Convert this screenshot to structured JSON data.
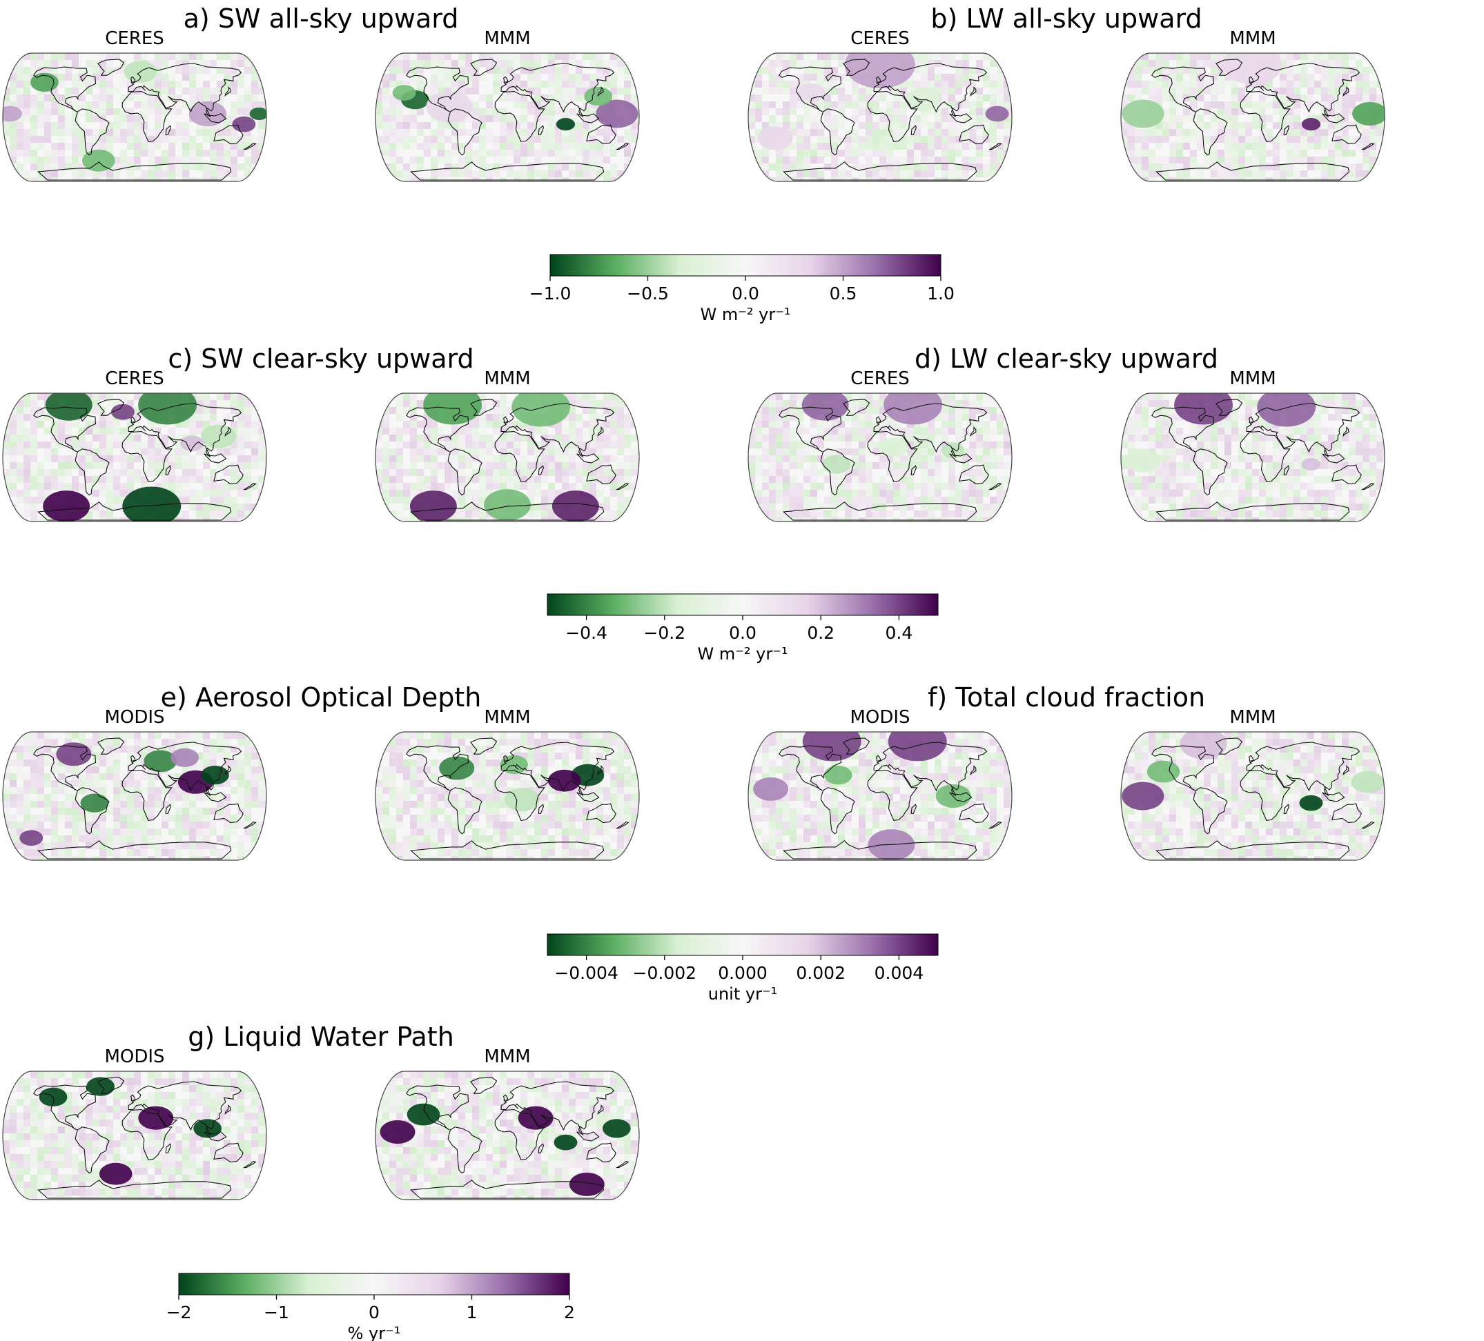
{
  "figure": {
    "panels": [
      {
        "id": "a",
        "title": "a) SW all-sky upward",
        "maps": [
          {
            "label": "CERES",
            "blobs": [
              {
                "lon": -140,
                "lat": 50,
                "r": 12,
                "v": -0.7
              },
              {
                "lon": 10,
                "lat": 65,
                "r": 14,
                "v": -0.4
              },
              {
                "lon": 150,
                "lat": -10,
                "r": 10,
                "v": 0.8
              },
              {
                "lon": -60,
                "lat": -62,
                "r": 14,
                "v": -0.6
              },
              {
                "lon": 100,
                "lat": 5,
                "r": 16,
                "v": 0.5
              },
              {
                "lon": -170,
                "lat": 5,
                "r": 10,
                "v": 0.5
              },
              {
                "lon": 170,
                "lat": 5,
                "r": 8,
                "v": -0.9
              }
            ]
          },
          {
            "label": "MMM",
            "blobs": [
              {
                "lon": -130,
                "lat": 25,
                "r": 12,
                "v": -0.9
              },
              {
                "lon": -150,
                "lat": 35,
                "r": 10,
                "v": -0.6
              },
              {
                "lon": 80,
                "lat": -10,
                "r": 8,
                "v": -1.0
              },
              {
                "lon": 150,
                "lat": 5,
                "r": 18,
                "v": 0.7
              },
              {
                "lon": 130,
                "lat": 30,
                "r": 12,
                "v": -0.6
              },
              {
                "lon": -80,
                "lat": 15,
                "r": 20,
                "v": 0.3
              }
            ]
          }
        ]
      },
      {
        "id": "b",
        "title": "b) LW all-sky upward",
        "maps": [
          {
            "label": "CERES",
            "blobs": [
              {
                "lon": 0,
                "lat": 75,
                "r": 30,
                "v": 0.5
              },
              {
                "lon": 160,
                "lat": 5,
                "r": 10,
                "v": 0.7
              },
              {
                "lon": -100,
                "lat": 35,
                "r": 12,
                "v": 0.3
              },
              {
                "lon": 60,
                "lat": 25,
                "r": 15,
                "v": -0.3
              },
              {
                "lon": -150,
                "lat": -30,
                "r": 15,
                "v": 0.3
              }
            ]
          },
          {
            "label": "MMM",
            "blobs": [
              {
                "lon": 0,
                "lat": 75,
                "r": 25,
                "v": 0.3
              },
              {
                "lon": 80,
                "lat": -10,
                "r": 8,
                "v": 0.9
              },
              {
                "lon": 160,
                "lat": 5,
                "r": 15,
                "v": -0.7
              },
              {
                "lon": -150,
                "lat": 5,
                "r": 18,
                "v": -0.5
              }
            ]
          }
        ]
      },
      {
        "id": "c",
        "title": "c) SW clear-sky upward",
        "maps": [
          {
            "label": "CERES",
            "blobs": [
              {
                "lon": -120,
                "lat": 75,
                "r": 20,
                "v": -0.45
              },
              {
                "lon": 60,
                "lat": 75,
                "r": 25,
                "v": -0.4
              },
              {
                "lon": -20,
                "lat": 65,
                "r": 10,
                "v": 0.4
              },
              {
                "lon": -120,
                "lat": -70,
                "r": 20,
                "v": 0.5
              },
              {
                "lon": 30,
                "lat": -70,
                "r": 25,
                "v": -0.5
              },
              {
                "lon": 120,
                "lat": 30,
                "r": 15,
                "v": -0.2
              },
              {
                "lon": 80,
                "lat": 20,
                "r": 10,
                "v": 0.2
              }
            ]
          },
          {
            "label": "MMM",
            "blobs": [
              {
                "lon": -100,
                "lat": 75,
                "r": 25,
                "v": -0.35
              },
              {
                "lon": 60,
                "lat": 72,
                "r": 25,
                "v": -0.3
              },
              {
                "lon": -130,
                "lat": -70,
                "r": 20,
                "v": 0.45
              },
              {
                "lon": 120,
                "lat": -70,
                "r": 20,
                "v": 0.45
              },
              {
                "lon": 0,
                "lat": -68,
                "r": 20,
                "v": -0.3
              }
            ]
          }
        ]
      },
      {
        "id": "d",
        "title": "d) LW clear-sky upward",
        "maps": [
          {
            "label": "CERES",
            "blobs": [
              {
                "lon": -100,
                "lat": 75,
                "r": 20,
                "v": 0.35
              },
              {
                "lon": 60,
                "lat": 75,
                "r": 25,
                "v": 0.3
              },
              {
                "lon": 20,
                "lat": 15,
                "r": 12,
                "v": -0.15
              },
              {
                "lon": -60,
                "lat": -10,
                "r": 12,
                "v": -0.2
              },
              {
                "lon": 100,
                "lat": 10,
                "r": 10,
                "v": -0.2
              }
            ]
          },
          {
            "label": "MMM",
            "blobs": [
              {
                "lon": -90,
                "lat": 75,
                "r": 25,
                "v": 0.4
              },
              {
                "lon": 60,
                "lat": 72,
                "r": 25,
                "v": 0.35
              },
              {
                "lon": 80,
                "lat": -10,
                "r": 8,
                "v": 0.2
              },
              {
                "lon": -150,
                "lat": -5,
                "r": 15,
                "v": -0.15
              }
            ]
          }
        ]
      },
      {
        "id": "e",
        "title": "e) Aerosol Optical Depth",
        "maps": [
          {
            "label": "MODIS",
            "blobs": [
              {
                "lon": 85,
                "lat": 20,
                "r": 15,
                "v": 0.005
              },
              {
                "lon": 115,
                "lat": 30,
                "r": 12,
                "v": -0.005
              },
              {
                "lon": -100,
                "lat": 60,
                "r": 15,
                "v": 0.004
              },
              {
                "lon": 40,
                "lat": 50,
                "r": 14,
                "v": -0.004
              },
              {
                "lon": -55,
                "lat": -10,
                "r": 12,
                "v": -0.004
              },
              {
                "lon": 80,
                "lat": 55,
                "r": 12,
                "v": 0.003
              },
              {
                "lon": -170,
                "lat": -60,
                "r": 10,
                "v": 0.004
              }
            ]
          },
          {
            "label": "MMM",
            "blobs": [
              {
                "lon": -75,
                "lat": 40,
                "r": 15,
                "v": -0.004
              },
              {
                "lon": 115,
                "lat": 30,
                "r": 14,
                "v": -0.005
              },
              {
                "lon": 80,
                "lat": 22,
                "r": 14,
                "v": 0.005
              },
              {
                "lon": 10,
                "lat": 45,
                "r": 12,
                "v": -0.003
              },
              {
                "lon": 20,
                "lat": -5,
                "r": 15,
                "v": -0.002
              }
            ]
          }
        ]
      },
      {
        "id": "f",
        "title": "f) Total cloud fraction",
        "maps": [
          {
            "label": "MODIS",
            "blobs": [
              {
                "lon": -90,
                "lat": 78,
                "r": 25,
                "v": 0.004
              },
              {
                "lon": 70,
                "lat": 78,
                "r": 25,
                "v": 0.004
              },
              {
                "lon": -150,
                "lat": 10,
                "r": 15,
                "v": 0.003
              },
              {
                "lon": 20,
                "lat": -70,
                "r": 20,
                "v": 0.003
              },
              {
                "lon": -60,
                "lat": 30,
                "r": 12,
                "v": -0.003
              },
              {
                "lon": 100,
                "lat": 0,
                "r": 15,
                "v": -0.003
              }
            ]
          },
          {
            "label": "MMM",
            "blobs": [
              {
                "lon": -150,
                "lat": 0,
                "r": 18,
                "v": 0.004
              },
              {
                "lon": 80,
                "lat": -10,
                "r": 10,
                "v": -0.005
              },
              {
                "lon": -130,
                "lat": 35,
                "r": 14,
                "v": -0.003
              },
              {
                "lon": 160,
                "lat": 20,
                "r": 14,
                "v": -0.002
              },
              {
                "lon": -90,
                "lat": 75,
                "r": 20,
                "v": 0.002
              }
            ]
          }
        ]
      },
      {
        "id": "g",
        "title": "g) Liquid Water Path",
        "maps": [
          {
            "label": "MODIS",
            "blobs": [
              {
                "lon": 30,
                "lat": 25,
                "r": 15,
                "v": 1.0
              },
              {
                "lon": -130,
                "lat": 55,
                "r": 12,
                "v": -1.2
              },
              {
                "lon": -30,
                "lat": -55,
                "r": 14,
                "v": 0.8
              },
              {
                "lon": 100,
                "lat": 10,
                "r": 12,
                "v": -0.8
              },
              {
                "lon": -60,
                "lat": 70,
                "r": 12,
                "v": -1.0
              }
            ]
          },
          {
            "label": "MMM",
            "blobs": [
              {
                "lon": -150,
                "lat": 5,
                "r": 15,
                "v": 1.5
              },
              {
                "lon": -120,
                "lat": 30,
                "r": 14,
                "v": -1.2
              },
              {
                "lon": 80,
                "lat": -10,
                "r": 10,
                "v": -1.0
              },
              {
                "lon": 140,
                "lat": -70,
                "r": 15,
                "v": 1.5
              },
              {
                "lon": 40,
                "lat": 25,
                "r": 15,
                "v": 0.8
              },
              {
                "lon": 150,
                "lat": 10,
                "r": 12,
                "v": -0.9
              }
            ]
          }
        ]
      }
    ],
    "colorbars": [
      {
        "min": -1.0,
        "max": 1.0,
        "ticks": [
          "−1.0",
          "−0.5",
          "0.0",
          "0.5",
          "1.0"
        ],
        "tick_values": [
          -1.0,
          -0.5,
          0.0,
          0.5,
          1.0
        ],
        "label": "W m⁻² yr⁻¹"
      },
      {
        "min": -0.5,
        "max": 0.5,
        "ticks": [
          "−0.4",
          "−0.2",
          "0.0",
          "0.2",
          "0.4"
        ],
        "tick_values": [
          -0.4,
          -0.2,
          0.0,
          0.2,
          0.4
        ],
        "label": "W m⁻² yr⁻¹"
      },
      {
        "min": -0.005,
        "max": 0.005,
        "ticks": [
          "−0.004",
          "−0.002",
          "0.000",
          "0.002",
          "0.004"
        ],
        "tick_values": [
          -0.004,
          -0.002,
          0.0,
          0.002,
          0.004
        ],
        "label": "unit yr⁻¹"
      },
      {
        "min": -2,
        "max": 2,
        "ticks": [
          "−2",
          "−1",
          "0",
          "1",
          "2"
        ],
        "tick_values": [
          -2,
          -1,
          0,
          1,
          2
        ],
        "label": "% yr⁻¹"
      }
    ],
    "colormap": {
      "negative_dark": "#00441b",
      "negative_mid": "#5aae61",
      "negative_light": "#d9f0d3",
      "zero": "#f7f7f7",
      "positive_light": "#e7d4e8",
      "positive_mid": "#9970ab",
      "positive_dark": "#40004b"
    },
    "map_border_color": "#444444",
    "coastline_color": "#111111"
  }
}
